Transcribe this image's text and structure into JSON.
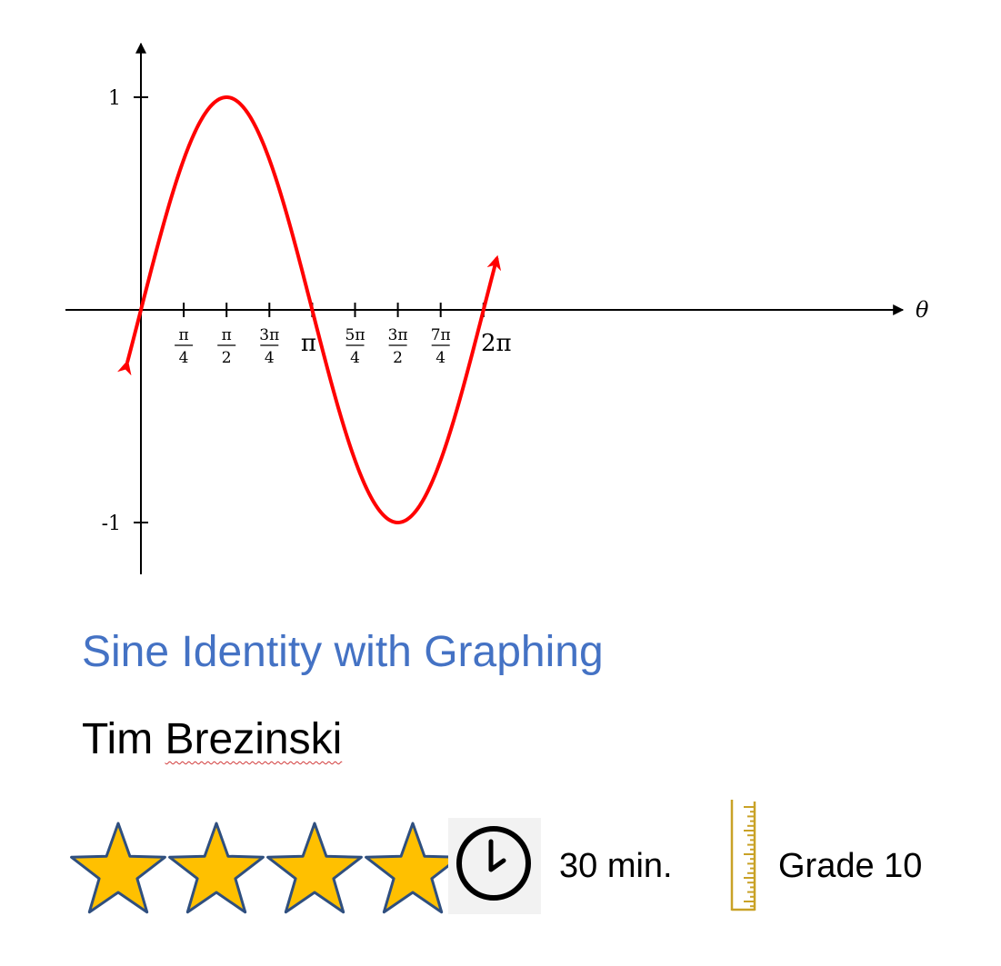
{
  "chart_data": {
    "type": "line",
    "function": "sin",
    "x_tick_labels": [
      "π/4",
      "π/2",
      "3π/4",
      "π",
      "5π/4",
      "3π/2",
      "7π/4",
      "2π"
    ],
    "x_tick_values": [
      0.785398,
      1.570796,
      2.356194,
      3.141593,
      3.926991,
      4.712389,
      5.497787,
      6.283185
    ],
    "y_tick_labels": [
      "1",
      "-1"
    ],
    "y_tick_values": [
      1,
      -1
    ],
    "xlabel": "θ",
    "xlim": [
      -0.3,
      6.6
    ],
    "ylim": [
      -1.1,
      1.1
    ],
    "curve_xrange": [
      -0.25,
      6.53
    ],
    "x": [
      0,
      0.785398,
      1.570796,
      2.356194,
      3.141593,
      3.926991,
      4.712389,
      5.497787,
      6.283185
    ],
    "y": [
      0,
      0.7071,
      1,
      0.7071,
      0,
      -0.7071,
      -1,
      -0.7071,
      0
    ],
    "color": "#ff0000",
    "arrows_both_ends": true,
    "grid": false
  },
  "card": {
    "title": "Sine Identity with Graphing",
    "author_first": "Tim",
    "author_last": "Brezinski",
    "rating": 4,
    "rating_max": 4,
    "duration": "30 min.",
    "grade": "Grade 10"
  },
  "colors": {
    "title": "#4472c4",
    "star_fill": "#ffc000",
    "star_stroke": "#2f4f7f",
    "ruler": "#c9a227"
  },
  "icons": {
    "duration": "clock-icon",
    "grade": "ruler-icon",
    "rating": "star-icon"
  }
}
